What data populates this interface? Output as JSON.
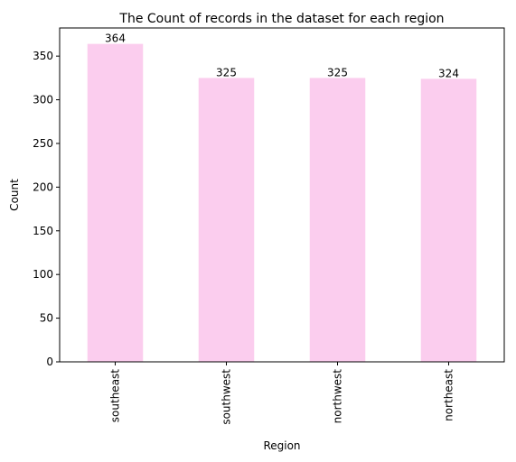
{
  "chart_data": {
    "type": "bar",
    "title": "The Count of records in the dataset for each region",
    "xlabel": "Region",
    "ylabel": "Count",
    "categories": [
      "southeast",
      "southwest",
      "northwest",
      "northeast"
    ],
    "values": [
      364,
      325,
      325,
      324
    ],
    "data_labels": [
      "364",
      "325",
      "325",
      "324"
    ],
    "ylim": [
      0,
      382.2
    ],
    "yticks": [
      0,
      50,
      100,
      150,
      200,
      250,
      300,
      350
    ],
    "bar_color": "#fbcdee",
    "grid": false,
    "legend": "none"
  }
}
